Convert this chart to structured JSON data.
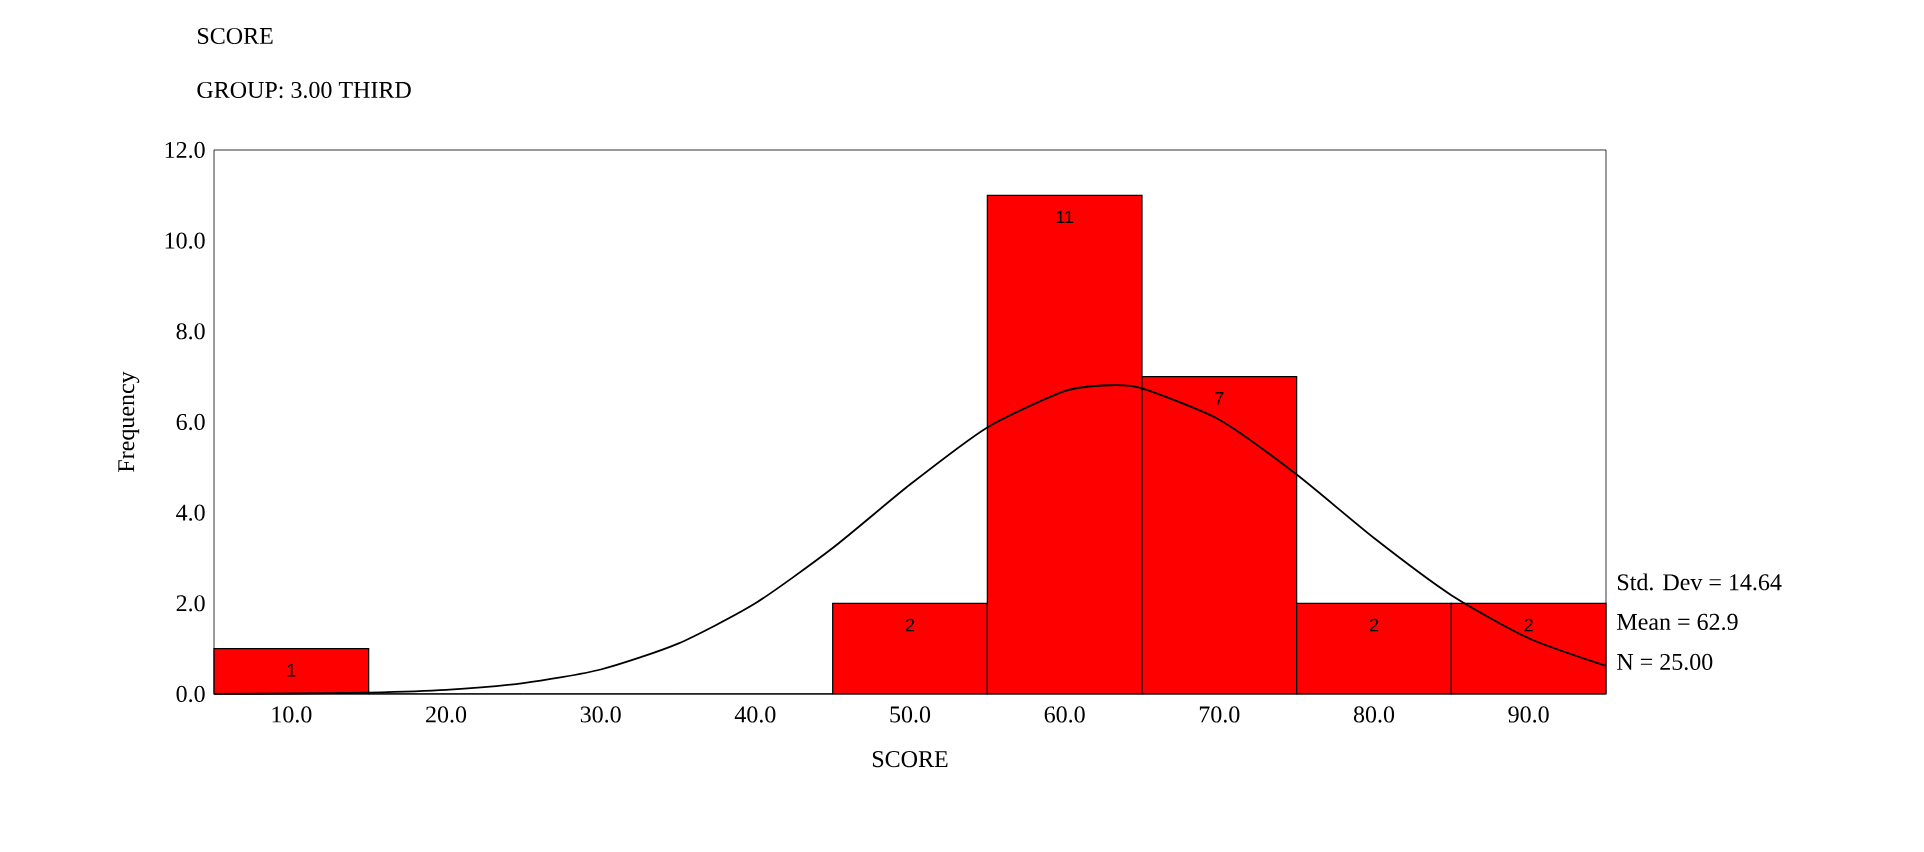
{
  "chart_data": {
    "type": "histogram",
    "title": "SCORE",
    "subtitle": "GROUP:    3.00   THIRD",
    "xlabel": "SCORE",
    "ylabel": "Frequency",
    "bins": [
      5,
      15,
      25,
      35,
      45,
      55,
      65,
      75,
      85,
      95
    ],
    "values": [
      1,
      0,
      0,
      0,
      2,
      11,
      7,
      2,
      2
    ],
    "value_labels": [
      "1",
      null,
      null,
      null,
      "2",
      "11",
      "7",
      "2",
      "2"
    ],
    "color": "#ff0000",
    "series": [
      {
        "type": "line",
        "color": "#000000",
        "x": [
          5,
          10,
          15,
          20,
          25,
          30,
          35,
          40,
          45,
          50,
          55,
          60,
          62.9,
          65,
          70,
          75,
          80,
          85,
          90,
          95
        ],
        "values": [
          0.0,
          0.01,
          0.03,
          0.09,
          0.24,
          0.54,
          1.11,
          2.0,
          3.22,
          4.62,
          5.88,
          6.68,
          6.81,
          6.74,
          6.05,
          4.84,
          3.44,
          2.18,
          1.23,
          0.62
        ]
      }
    ],
    "xlim": [
      5,
      95
    ],
    "ylim": [
      0,
      12
    ],
    "xticks": [
      {
        "value": 10,
        "label": "10.0"
      },
      {
        "value": 20,
        "label": "20.0"
      },
      {
        "value": 30,
        "label": "30.0"
      },
      {
        "value": 40,
        "label": "40.0"
      },
      {
        "value": 50,
        "label": "50.0"
      },
      {
        "value": 60,
        "label": "60.0"
      },
      {
        "value": 70,
        "label": "70.0"
      },
      {
        "value": 80,
        "label": "80.0"
      },
      {
        "value": 90,
        "label": "90.0"
      }
    ],
    "yticks": [
      {
        "value": 0,
        "label": "0.0"
      },
      {
        "value": 2,
        "label": "2.0"
      },
      {
        "value": 4,
        "label": "4.0"
      },
      {
        "value": 6,
        "label": "6.0"
      },
      {
        "value": 8,
        "label": "8.0"
      },
      {
        "value": 10,
        "label": "10.0"
      },
      {
        "value": 12,
        "label": "12.0"
      }
    ],
    "annotations": [
      "Std. Dev = 14.64",
      "Mean = 62.9",
      "N = 25.00"
    ]
  }
}
